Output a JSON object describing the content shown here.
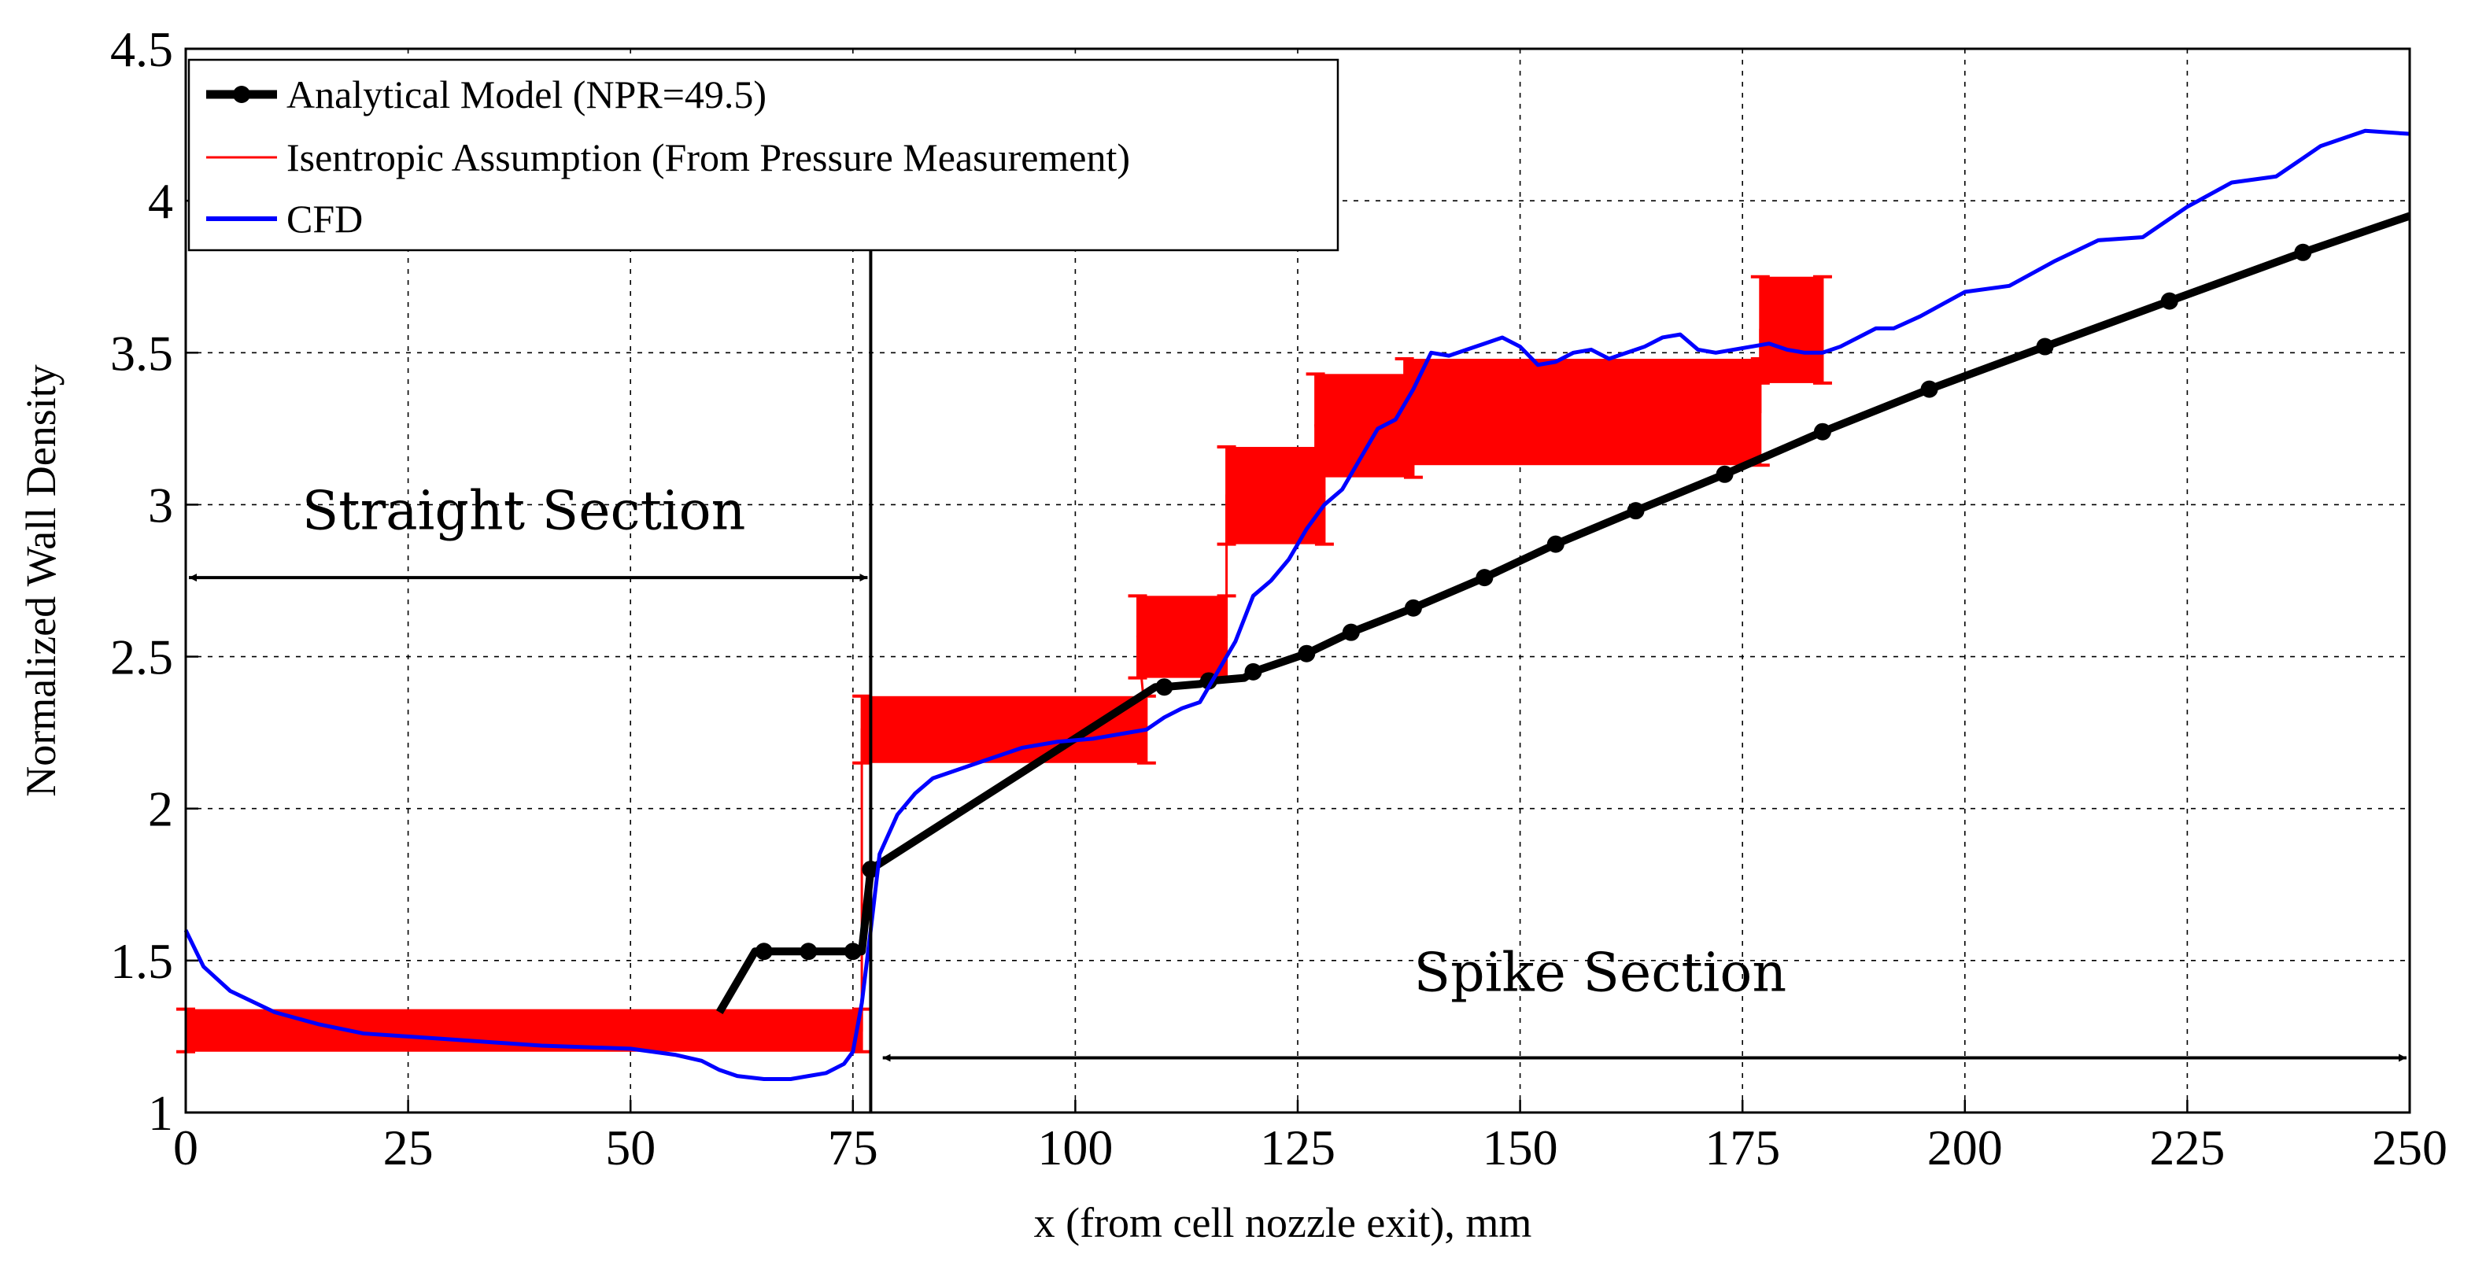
{
  "chart_data": {
    "type": "line",
    "xlabel": "x (from cell nozzle exit), mm",
    "ylabel": "Normalized Wall Density",
    "xlim": [
      0,
      250
    ],
    "ylim": [
      1,
      4.5
    ],
    "xticks": [
      0,
      25,
      50,
      75,
      100,
      125,
      150,
      175,
      200,
      225,
      250
    ],
    "yticks": [
      1,
      1.5,
      2,
      2.5,
      3,
      3.5,
      4,
      4.5
    ],
    "ytick_labels": [
      "1",
      "1.5",
      "2",
      "2.5",
      "3",
      "3.5",
      "4",
      "4.5"
    ],
    "grid": true,
    "legend_position": "top-left",
    "series": [
      {
        "name": "Analytical Model (NPR=49.5)",
        "color": "#000000",
        "style": "line-with-circle-markers",
        "x": [
          60,
          64,
          65,
          69,
          70,
          74,
          75,
          76,
          77,
          109,
          110,
          114,
          115,
          119,
          120,
          126,
          131,
          138,
          146,
          154,
          163,
          173,
          184,
          196,
          209,
          223,
          238,
          250
        ],
        "y": [
          1.33,
          1.53,
          1.53,
          1.53,
          1.53,
          1.53,
          1.53,
          1.53,
          1.8,
          2.4,
          2.4,
          2.41,
          2.42,
          2.43,
          2.45,
          2.51,
          2.58,
          2.66,
          2.76,
          2.87,
          2.98,
          3.1,
          3.24,
          3.38,
          3.52,
          3.67,
          3.83,
          3.95
        ],
        "marker_x": [
          65,
          70,
          75,
          77,
          110,
          115,
          120,
          126,
          131,
          138,
          146,
          154,
          163,
          173,
          184,
          196,
          209,
          223,
          238
        ],
        "marker_y": [
          1.53,
          1.53,
          1.53,
          1.8,
          2.4,
          2.42,
          2.45,
          2.51,
          2.58,
          2.66,
          2.76,
          2.87,
          2.98,
          3.1,
          3.24,
          3.38,
          3.52,
          3.67,
          3.83
        ]
      },
      {
        "name": "Isentropic Assumption (From Pressure Measurement)",
        "color": "#ff0000",
        "style": "error-band",
        "segments": [
          {
            "x": [
              0,
              76
            ],
            "low": 1.2,
            "high": 1.34
          },
          {
            "x": [
              76,
              108
            ],
            "low": 2.15,
            "high": 2.37
          },
          {
            "x": [
              107,
              117
            ],
            "low": 2.43,
            "high": 2.7
          },
          {
            "x": [
              117,
              128
            ],
            "low": 2.87,
            "high": 3.19
          },
          {
            "x": [
              127,
              138
            ],
            "low": 3.09,
            "high": 3.43
          },
          {
            "x": [
              137,
              177
            ],
            "low": 3.13,
            "high": 3.48
          },
          {
            "x": [
              177,
              184
            ],
            "low": 3.4,
            "high": 3.75
          }
        ]
      },
      {
        "name": "CFD",
        "color": "#0000ff",
        "style": "line",
        "x": [
          0,
          2,
          5,
          10,
          15,
          20,
          25,
          30,
          40,
          50,
          55,
          58,
          60,
          62,
          65,
          68,
          70,
          72,
          74,
          75,
          76,
          77,
          78,
          80,
          82,
          84,
          86,
          90,
          94,
          98,
          102,
          106,
          108,
          110,
          112,
          114,
          116,
          118,
          120,
          122,
          124,
          126,
          128,
          130,
          132,
          134,
          136,
          138,
          140,
          142,
          144,
          146,
          148,
          150,
          152,
          154,
          156,
          158,
          160,
          162,
          164,
          166,
          168,
          170,
          172,
          174,
          176,
          178,
          180,
          182,
          184,
          186,
          188,
          190,
          192,
          195,
          200,
          205,
          210,
          215,
          220,
          225,
          230,
          235,
          240,
          245,
          250
        ],
        "y": [
          1.6,
          1.48,
          1.4,
          1.33,
          1.29,
          1.26,
          1.25,
          1.24,
          1.22,
          1.21,
          1.19,
          1.17,
          1.14,
          1.12,
          1.11,
          1.11,
          1.12,
          1.13,
          1.16,
          1.2,
          1.36,
          1.6,
          1.85,
          1.98,
          2.05,
          2.1,
          2.12,
          2.16,
          2.2,
          2.22,
          2.23,
          2.25,
          2.26,
          2.3,
          2.33,
          2.35,
          2.45,
          2.55,
          2.7,
          2.75,
          2.82,
          2.92,
          3.0,
          3.05,
          3.15,
          3.25,
          3.28,
          3.38,
          3.5,
          3.49,
          3.51,
          3.53,
          3.55,
          3.52,
          3.46,
          3.47,
          3.5,
          3.51,
          3.48,
          3.5,
          3.52,
          3.55,
          3.56,
          3.51,
          3.5,
          3.51,
          3.52,
          3.53,
          3.51,
          3.5,
          3.5,
          3.52,
          3.55,
          3.58,
          3.58,
          3.62,
          3.7,
          3.72,
          3.8,
          3.87,
          3.88,
          3.98,
          4.06,
          4.08,
          4.18,
          4.23,
          4.22
        ]
      }
    ],
    "vline": {
      "x": 77
    },
    "annotations": [
      {
        "text": "Straight Section",
        "arrow_from": 0,
        "arrow_to": 77,
        "arrow_y": 2.76,
        "text_x": 38,
        "text_y": 2.92
      },
      {
        "text": "Spike Section",
        "arrow_from": 78,
        "arrow_to": 250,
        "arrow_y": 1.18,
        "text_x": 159,
        "text_y": 1.4
      }
    ]
  }
}
